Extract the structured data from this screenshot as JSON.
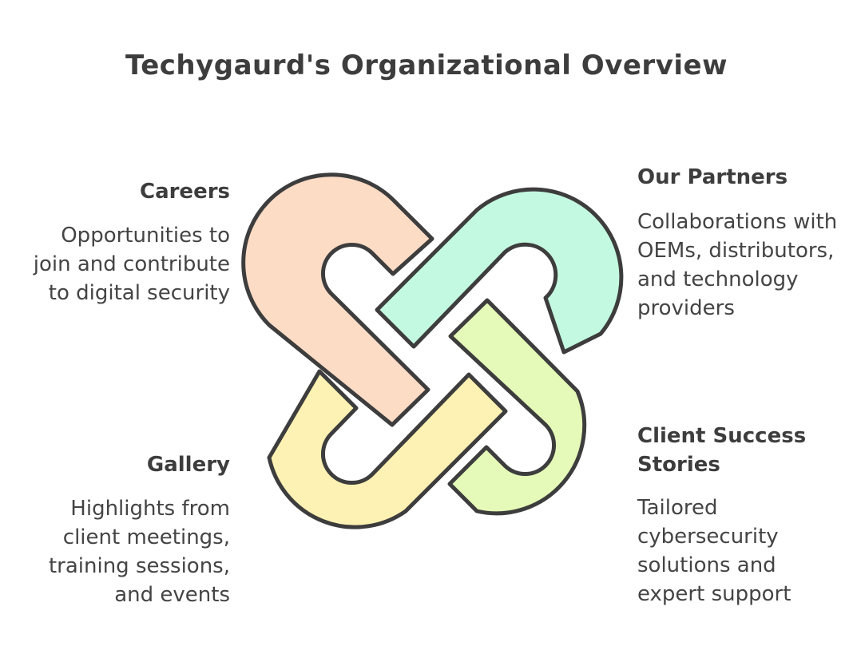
{
  "title": "Techygaurd's Organizational Overview",
  "sections": {
    "careers": {
      "heading": "Careers",
      "description": "Opportunities to join and contribute to digital security",
      "color": "#fddcc6"
    },
    "partners": {
      "heading": "Our Partners",
      "description": "Collaborations with OEMs, distributors, and technology providers",
      "color": "#c3f9e0"
    },
    "gallery": {
      "heading": "Gallery",
      "description": "Highlights from client meetings, training sessions, and events",
      "color": "#fdf2b3"
    },
    "clients": {
      "heading": "Client Success Stories",
      "description": "Tailored cybersecurity solutions and expert support",
      "color": "#e5fab8"
    }
  },
  "outline_color": "#3d3d3d"
}
